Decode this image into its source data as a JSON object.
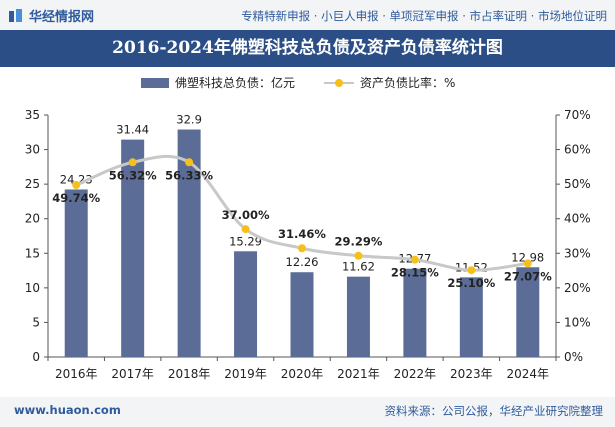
{
  "header": {
    "site_name": "华经情报网",
    "links": "专精特新申报 · 小巨人申报 · 单项冠军申报 · 市占率证明 · 市场地位证明"
  },
  "chart_data": {
    "type": "bar+line",
    "title": "2016-2024年佛塑科技总负债及资产负债率统计图",
    "categories": [
      "2016年",
      "2017年",
      "2018年",
      "2019年",
      "2020年",
      "2021年",
      "2022年",
      "2023年",
      "2024年"
    ],
    "series": [
      {
        "name": "佛塑科技总负债：亿元",
        "type": "bar",
        "axis": "left",
        "values": [
          24.23,
          31.44,
          32.9,
          15.29,
          12.26,
          11.62,
          12.77,
          11.52,
          12.98
        ],
        "labels": [
          "24.23",
          "31.44",
          "32.9",
          "15.29",
          "12.26",
          "11.62",
          "12.77",
          "11.52",
          "12.98"
        ]
      },
      {
        "name": "资产负债比率：%",
        "type": "line",
        "axis": "right",
        "values": [
          49.74,
          56.32,
          56.33,
          37.0,
          31.46,
          29.29,
          28.15,
          25.1,
          27.07
        ],
        "labels": [
          "49.74%",
          "56.32%",
          "56.33%",
          "37.00%",
          "31.46%",
          "29.29%",
          "28.15%",
          "25.10%",
          "27.07%"
        ]
      }
    ],
    "y_left": {
      "min": 0,
      "max": 35,
      "ticks": [
        "0",
        "5",
        "10",
        "15",
        "20",
        "25",
        "30",
        "35"
      ]
    },
    "y_right": {
      "min": 0,
      "max": 70,
      "ticks": [
        "0%",
        "10%",
        "20%",
        "30%",
        "40%",
        "50%",
        "60%",
        "70%"
      ]
    },
    "legend_position": "top-center",
    "grid": false,
    "colors": {
      "bar": "#5b6d96",
      "line": "#c8c8c8",
      "marker": "#f5c01a",
      "text": "#222222"
    }
  },
  "footer": {
    "website": "www.huaon.com",
    "source": "资料来源：公司公报，华经产业研究院整理"
  }
}
